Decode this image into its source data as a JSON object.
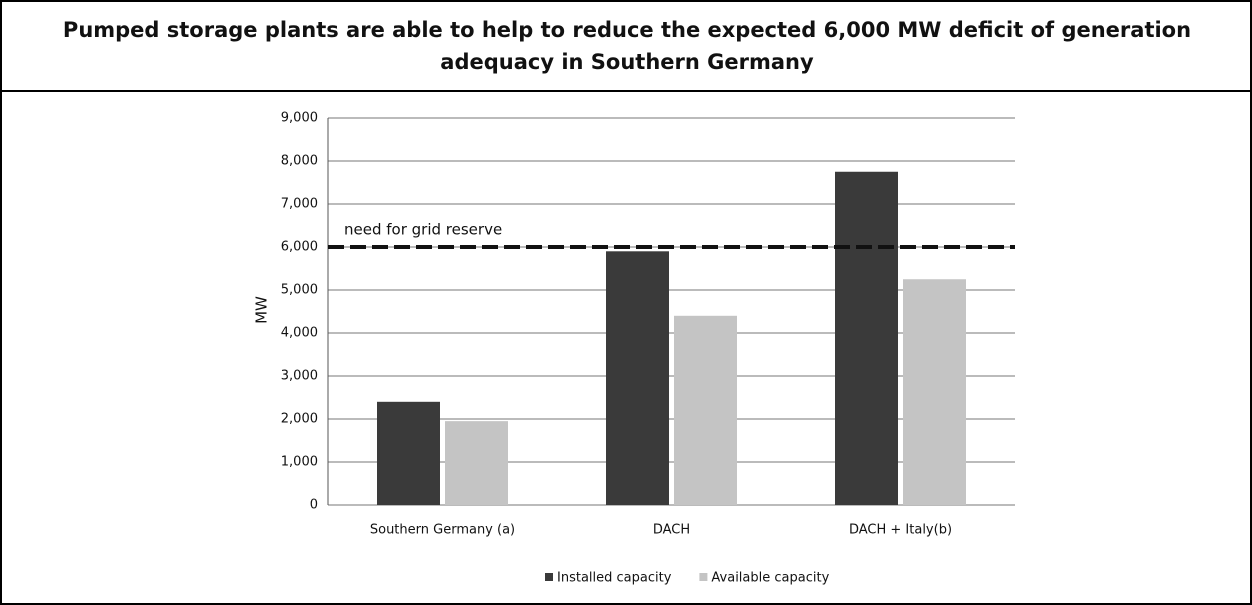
{
  "chart_data": {
    "type": "bar",
    "title": "Pumped storage plants are able to help to reduce the expected 6,000 MW deficit of generation adequacy in Southern Germany",
    "ylabel": "MW",
    "categories": [
      "Southern Germany (a)",
      "DACH",
      "DACH + Italy(b)"
    ],
    "series": [
      {
        "name": "Installed capacity",
        "color": "#3a3a3a",
        "values": [
          2400,
          5900,
          7750
        ]
      },
      {
        "name": "Available capacity",
        "color": "#c4c4c4",
        "values": [
          1950,
          4400,
          5250
        ]
      }
    ],
    "reference_line": {
      "value": 6000,
      "label": "need for grid reserve"
    },
    "ylim": [
      0,
      9000
    ],
    "yticks": [
      0,
      {
        "value": 1000,
        "label": "1,000"
      },
      {
        "value": 2000,
        "label": "2,000"
      },
      {
        "value": 3000,
        "label": "3,000"
      },
      {
        "value": 4000,
        "label": "4,000"
      },
      {
        "value": 5000,
        "label": "5,000"
      },
      {
        "value": 6000,
        "label": "6,000"
      },
      {
        "value": 7000,
        "label": "7,000"
      },
      {
        "value": 8000,
        "label": "8,000"
      },
      {
        "value": 9000,
        "label": "9,000"
      }
    ],
    "grid": true
  }
}
